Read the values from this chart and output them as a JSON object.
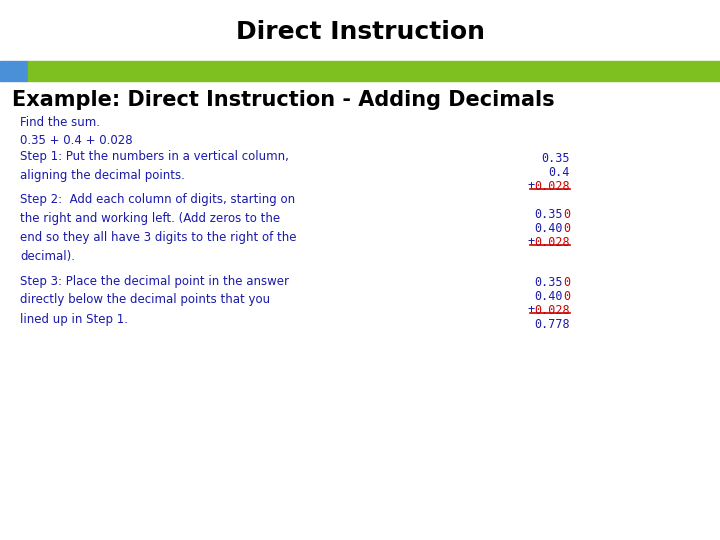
{
  "title": "Direct Instruction",
  "title_fontsize": 18,
  "title_color": "#000000",
  "subtitle": "Example: Direct Instruction - Adding Decimals",
  "subtitle_fontsize": 15,
  "subtitle_color": "#000000",
  "bar_blue_color": "#4A90D9",
  "bar_green_color": "#7DC020",
  "background_color": "#FFFFFF",
  "blue_dark": "#1a1aaa",
  "red_color": "#CC0000",
  "body_fontsize": 8.5,
  "find_sum_text": "Find the sum.",
  "equation_text": "0.35 + 0.4 + 0.028",
  "step1_text": "Step 1: Put the numbers in a vertical column,\naligning the decimal points.",
  "step2_text": "Step 2:  Add each column of digits, starting on\nthe right and working left. (Add zeros to the\nend so they all have 3 digits to the right of the\ndecimal).",
  "step3_text": "Step 3: Place the decimal point in the answer\ndirectly below the decimal points that you\nlined up in Step 1.",
  "step1_numbers": [
    "0.35",
    "0.4",
    "0.028"
  ],
  "step2_numbers_blue": [
    "0.35",
    "0.40"
  ],
  "step2_numbers_red": [
    "0",
    "0"
  ],
  "step3_numbers_blue": [
    "0.35",
    "0.40"
  ],
  "step3_numbers_red": [
    "0",
    "0"
  ],
  "step3_answer": "0.778"
}
